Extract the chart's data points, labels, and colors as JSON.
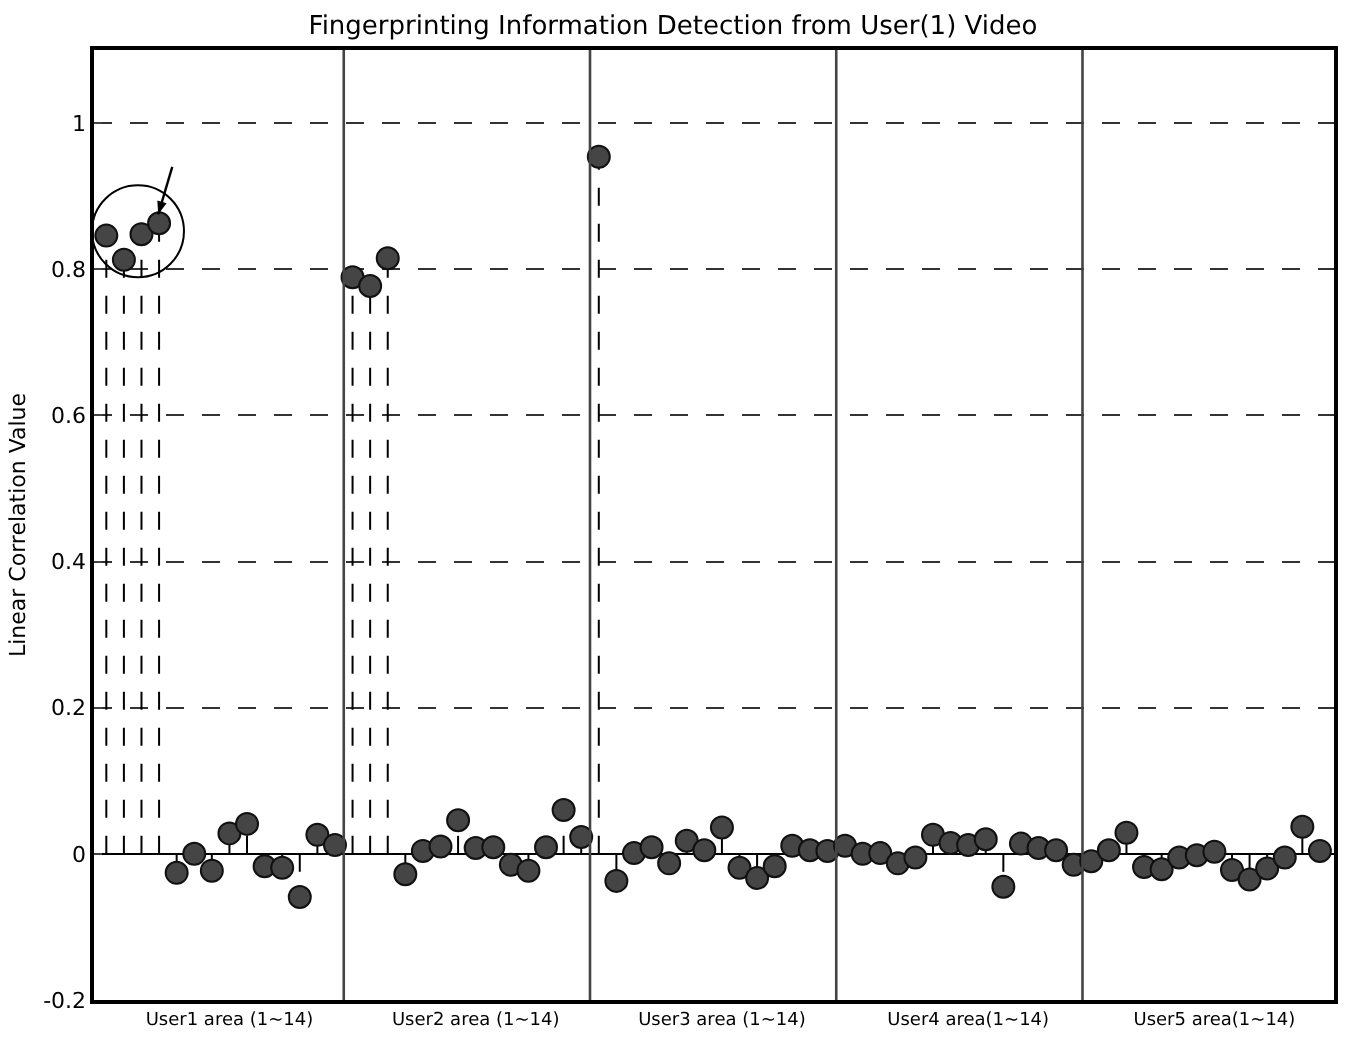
{
  "chart_data": {
    "type": "lollipop",
    "title": "Fingerprinting Information Detection from User(1) Video",
    "ylabel": "Linear Correlation Value",
    "categories": [
      null,
      null,
      null,
      null,
      null,
      null,
      null,
      "User1 area (1~14)",
      null,
      null,
      null,
      null,
      null,
      null,
      null,
      null,
      null,
      null,
      null,
      null,
      null,
      "User2 area (1~14)",
      null,
      null,
      null,
      null,
      null,
      null,
      null,
      null,
      null,
      null,
      null,
      null,
      null,
      "User3 area (1~14)",
      null,
      null,
      null,
      null,
      null,
      null,
      null,
      null,
      null,
      null,
      null,
      null,
      null,
      "User4 area(1~14)",
      null,
      null,
      null,
      null,
      null,
      null,
      null,
      null,
      null,
      null,
      null,
      null,
      null,
      "User5 area(1~14)",
      null,
      null,
      null,
      null,
      null,
      null
    ],
    "values": [
      0.846,
      0.813,
      0.848,
      0.863,
      -0.026,
      0.0,
      -0.023,
      0.028,
      0.041,
      -0.017,
      -0.019,
      -0.059,
      0.026,
      0.012,
      0.789,
      0.777,
      0.815,
      -0.028,
      0.004,
      0.01,
      0.046,
      0.008,
      0.009,
      -0.015,
      -0.023,
      0.009,
      0.06,
      0.023,
      0.954,
      -0.037,
      0.001,
      0.009,
      -0.013,
      0.018,
      0.005,
      0.036,
      -0.019,
      -0.033,
      -0.017,
      0.011,
      0.005,
      0.004,
      0.011,
      0.0,
      0.001,
      -0.013,
      -0.005,
      0.026,
      0.015,
      0.012,
      0.02,
      -0.045,
      0.014,
      0.008,
      0.005,
      -0.015,
      -0.01,
      0.005,
      0.029,
      -0.018,
      -0.021,
      -0.005,
      -0.002,
      0.003,
      -0.022,
      -0.035,
      -0.02,
      -0.005,
      0.037,
      0.004
    ],
    "color": "#454545",
    "marker": "circle",
    "line_style": "dashed",
    "ylim": [
      -0.2,
      1.1
    ],
    "yticks": [
      -0.2,
      0,
      0.2,
      0.4,
      0.6,
      0.8,
      1
    ],
    "grid": "y"
  }
}
